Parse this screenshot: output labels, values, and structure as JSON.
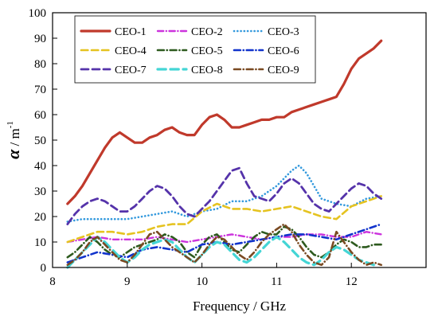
{
  "chart_data": {
    "type": "line",
    "title": "",
    "xlabel": "Frequency / GHz",
    "ylabel": "α / m⁻¹",
    "ylabel_parts": {
      "symbol": "α",
      "unit_base": " / m",
      "unit_exp": "-1"
    },
    "xlim": [
      8,
      13
    ],
    "ylim": [
      0,
      100
    ],
    "x_ticks": [
      8,
      9,
      10,
      11,
      12
    ],
    "y_ticks": [
      0,
      10,
      20,
      30,
      40,
      50,
      60,
      70,
      80,
      90,
      100
    ],
    "grid": false,
    "legend_position": "top-left",
    "series": [
      {
        "name": "CEO-1",
        "color": "#c0392b",
        "style": "solid",
        "width": 3.2,
        "x": [
          8.2,
          8.3,
          8.4,
          8.5,
          8.6,
          8.7,
          8.8,
          8.9,
          9.0,
          9.1,
          9.2,
          9.3,
          9.4,
          9.5,
          9.6,
          9.7,
          9.8,
          9.9,
          10.0,
          10.1,
          10.2,
          10.3,
          10.4,
          10.5,
          10.6,
          10.7,
          10.8,
          10.9,
          11.0,
          11.1,
          11.2,
          11.3,
          11.4,
          11.5,
          11.6,
          11.7,
          11.8,
          11.9,
          12.0,
          12.1,
          12.2,
          12.3,
          12.4
        ],
        "y": [
          25,
          28,
          32,
          37,
          42,
          47,
          51,
          53,
          51,
          49,
          49,
          51,
          52,
          54,
          55,
          53,
          52,
          52,
          56,
          59,
          60,
          58,
          55,
          55,
          56,
          57,
          58,
          58,
          59,
          59,
          61,
          62,
          63,
          64,
          65,
          66,
          67,
          72,
          78,
          82,
          84,
          86,
          89
        ]
      },
      {
        "name": "CEO-2",
        "color": "#cc33dd",
        "style": "dashdot",
        "width": 2.4,
        "x": [
          8.2,
          8.4,
          8.6,
          8.8,
          9.0,
          9.2,
          9.4,
          9.6,
          9.8,
          10.0,
          10.2,
          10.4,
          10.6,
          10.8,
          11.0,
          11.2,
          11.4,
          11.6,
          11.8,
          12.0,
          12.2,
          12.4
        ],
        "y": [
          10,
          11,
          12,
          11,
          11,
          11,
          12,
          11,
          10,
          11,
          12,
          13,
          12,
          11,
          12,
          12,
          13,
          13,
          12,
          12,
          14,
          13
        ]
      },
      {
        "name": "CEO-3",
        "color": "#3399dd",
        "style": "dotted",
        "width": 2.6,
        "x": [
          8.2,
          8.4,
          8.6,
          8.8,
          9.0,
          9.2,
          9.4,
          9.6,
          9.8,
          10.0,
          10.2,
          10.4,
          10.6,
          10.8,
          11.0,
          11.2,
          11.3,
          11.4,
          11.6,
          11.8,
          12.0,
          12.2,
          12.4
        ],
        "y": [
          18,
          19,
          19,
          19,
          19,
          20,
          21,
          22,
          20,
          22,
          23,
          26,
          26,
          28,
          32,
          38,
          40,
          37,
          27,
          25,
          24,
          27,
          28
        ]
      },
      {
        "name": "CEO-4",
        "color": "#e5c320",
        "style": "dashed",
        "width": 2.6,
        "x": [
          8.2,
          8.4,
          8.6,
          8.8,
          9.0,
          9.2,
          9.4,
          9.6,
          9.8,
          10.0,
          10.2,
          10.4,
          10.6,
          10.8,
          11.0,
          11.2,
          11.4,
          11.6,
          11.8,
          12.0,
          12.2,
          12.4
        ],
        "y": [
          10,
          12,
          14,
          14,
          13,
          14,
          16,
          17,
          17,
          22,
          25,
          23,
          23,
          22,
          23,
          24,
          22,
          20,
          19,
          24,
          26,
          28
        ]
      },
      {
        "name": "CEO-5",
        "color": "#2d5a1e",
        "style": "dashdot",
        "width": 2.6,
        "x": [
          8.2,
          8.3,
          8.4,
          8.5,
          8.6,
          8.7,
          8.8,
          8.9,
          9.0,
          9.1,
          9.2,
          9.3,
          9.4,
          9.5,
          9.6,
          9.7,
          9.8,
          9.9,
          10.0,
          10.1,
          10.2,
          10.3,
          10.4,
          10.5,
          10.6,
          10.7,
          10.8,
          10.9,
          11.0,
          11.1,
          11.2,
          11.3,
          11.4,
          11.5,
          11.6,
          11.7,
          11.8,
          11.9,
          12.0,
          12.1,
          12.2,
          12.3,
          12.4
        ],
        "y": [
          4,
          6,
          9,
          12,
          10,
          7,
          5,
          4,
          6,
          8,
          9,
          10,
          11,
          13,
          12,
          10,
          6,
          4,
          9,
          12,
          13,
          10,
          7,
          6,
          9,
          12,
          14,
          13,
          13,
          16,
          15,
          12,
          8,
          5,
          4,
          6,
          9,
          11,
          10,
          8,
          8,
          9,
          9
        ]
      },
      {
        "name": "CEO-6",
        "color": "#1133cc",
        "style": "dashdot",
        "width": 2.6,
        "x": [
          8.2,
          8.4,
          8.6,
          8.8,
          9.0,
          9.2,
          9.4,
          9.6,
          9.8,
          10.0,
          10.2,
          10.4,
          10.6,
          10.8,
          11.0,
          11.2,
          11.4,
          11.6,
          11.8,
          12.0,
          12.2,
          12.4
        ],
        "y": [
          2,
          4,
          6,
          5,
          4,
          7,
          8,
          7,
          6,
          9,
          10,
          9,
          10,
          11,
          12,
          13,
          13,
          12,
          11,
          13,
          15,
          17
        ]
      },
      {
        "name": "CEO-7",
        "color": "#5533aa",
        "style": "dashed",
        "width": 2.8,
        "x": [
          8.2,
          8.3,
          8.4,
          8.5,
          8.6,
          8.7,
          8.8,
          8.9,
          9.0,
          9.1,
          9.2,
          9.3,
          9.4,
          9.5,
          9.6,
          9.7,
          9.8,
          9.9,
          10.0,
          10.1,
          10.2,
          10.3,
          10.4,
          10.5,
          10.6,
          10.7,
          10.8,
          10.9,
          11.0,
          11.1,
          11.2,
          11.3,
          11.4,
          11.5,
          11.6,
          11.7,
          11.8,
          11.9,
          12.0,
          12.1,
          12.2,
          12.3,
          12.4
        ],
        "y": [
          17,
          21,
          24,
          26,
          27,
          26,
          24,
          22,
          22,
          24,
          27,
          30,
          32,
          31,
          28,
          24,
          21,
          20,
          23,
          26,
          30,
          34,
          38,
          39,
          33,
          28,
          27,
          26,
          29,
          33,
          35,
          33,
          29,
          25,
          23,
          22,
          25,
          28,
          31,
          33,
          32,
          29,
          27
        ]
      },
      {
        "name": "CEO-8",
        "color": "#44d5d5",
        "style": "dashed",
        "width": 3.2,
        "x": [
          8.2,
          8.3,
          8.4,
          8.5,
          8.6,
          8.7,
          8.8,
          8.9,
          9.0,
          9.1,
          9.2,
          9.3,
          9.4,
          9.5,
          9.6,
          9.7,
          9.8,
          9.9,
          10.0,
          10.1,
          10.2,
          10.3,
          10.4,
          10.5,
          10.6,
          10.7,
          10.8,
          10.9,
          11.0,
          11.1,
          11.2,
          11.3,
          11.4,
          11.5,
          11.6,
          11.7,
          11.8,
          11.9,
          12.0,
          12.1,
          12.2,
          12.3
        ],
        "y": [
          0,
          3,
          6,
          9,
          12,
          10,
          7,
          4,
          2,
          4,
          7,
          9,
          10,
          11,
          10,
          7,
          4,
          2,
          5,
          8,
          10,
          9,
          6,
          3,
          2,
          4,
          7,
          10,
          12,
          10,
          7,
          4,
          2,
          1,
          3,
          6,
          8,
          7,
          5,
          3,
          2,
          1
        ]
      },
      {
        "name": "CEO-9",
        "color": "#7a4a22",
        "style": "dashdot",
        "width": 2.6,
        "x": [
          8.2,
          8.3,
          8.4,
          8.5,
          8.6,
          8.7,
          8.8,
          8.9,
          9.0,
          9.1,
          9.2,
          9.3,
          9.4,
          9.5,
          9.6,
          9.7,
          9.8,
          9.9,
          10.0,
          10.1,
          10.2,
          10.3,
          10.4,
          10.5,
          10.6,
          10.7,
          10.8,
          10.9,
          11.0,
          11.1,
          11.2,
          11.3,
          11.4,
          11.5,
          11.6,
          11.7,
          11.8,
          11.9,
          12.0,
          12.1,
          12.2,
          12.3,
          12.4
        ],
        "y": [
          1,
          3,
          6,
          10,
          12,
          9,
          6,
          3,
          2,
          5,
          9,
          13,
          14,
          11,
          8,
          6,
          4,
          2,
          5,
          9,
          12,
          11,
          8,
          5,
          3,
          6,
          10,
          13,
          15,
          17,
          14,
          9,
          5,
          2,
          1,
          4,
          14,
          10,
          6,
          3,
          1,
          2,
          1
        ]
      }
    ]
  }
}
